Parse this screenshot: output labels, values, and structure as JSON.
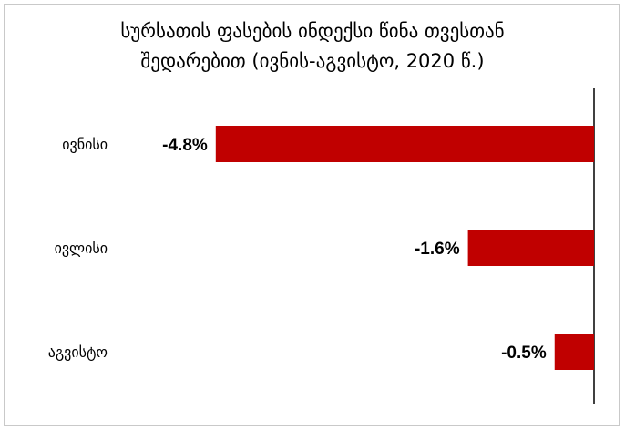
{
  "chart_data": {
    "type": "bar",
    "orientation": "horizontal",
    "title_line1": "სურსათის ფასების ინდექსი წინა თვესთან",
    "title_line2": "შედარებით (ივნის-აგვისტო, 2020 წ.)",
    "categories": [
      "ივნისი",
      "ივლისი",
      "აგვისტო"
    ],
    "values": [
      -4.8,
      -1.6,
      -0.5
    ],
    "data_labels": [
      "-4.8%",
      "-1.6%",
      "-0.5%"
    ],
    "xlim": [
      -6.0,
      0
    ],
    "grid": false,
    "legend": "none",
    "bar_color": "#c00000"
  }
}
